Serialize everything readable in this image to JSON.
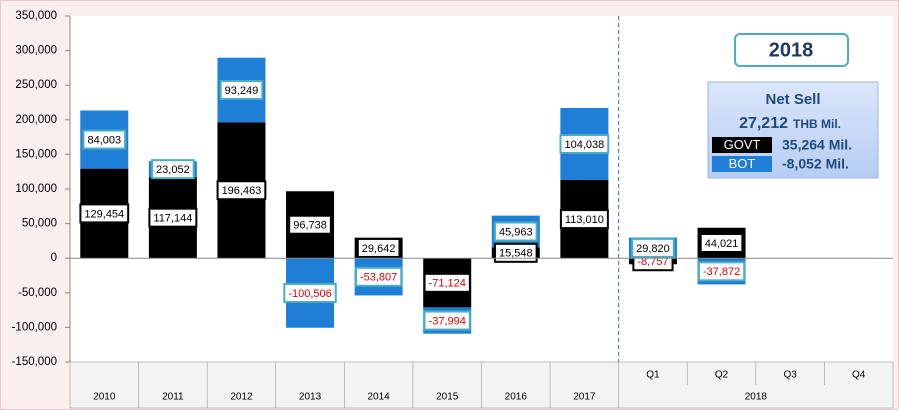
{
  "chart_data": {
    "type": "stacked_bar",
    "categories": [
      "2010",
      "2011",
      "2012",
      "2013",
      "2014",
      "2015",
      "2016",
      "2017",
      "Q1",
      "Q2",
      "Q3",
      "Q4"
    ],
    "group_label": "2018",
    "series": [
      {
        "name": "GOVT",
        "color": "#000000",
        "label_border": "#000000",
        "values": [
          129454,
          117144,
          196463,
          96738,
          29642,
          -71124,
          15548,
          113010,
          -8757,
          44021,
          null,
          null
        ],
        "value_labels": [
          "129,454",
          "117,144",
          "196,463",
          "96,738",
          "29,642",
          "-71,124",
          "15,548",
          "113,010",
          "-8,757",
          "44,021",
          null,
          null
        ]
      },
      {
        "name": "BOT",
        "color": "#1f7fd6",
        "label_border": "#4bacc6",
        "values": [
          84003,
          23052,
          93249,
          -100506,
          -53807,
          -37994,
          45963,
          104038,
          29820,
          -37872,
          null,
          null
        ],
        "value_labels": [
          "84,003",
          "23,052",
          "93,249",
          "-100,506",
          "-53,807",
          "-37,994",
          "45,963",
          "104,038",
          "29,820",
          "-37,872",
          null,
          null
        ]
      }
    ],
    "negative_label_color": "#e00000",
    "ylim": [
      -150000,
      350000
    ],
    "yticks": [
      {
        "value": -150000,
        "label": "-150,000"
      },
      {
        "value": -100000,
        "label": "-100,000"
      },
      {
        "value": -50000,
        "label": "-50,000"
      },
      0,
      {
        "value": 50000,
        "label": "50,000"
      },
      {
        "value": 100000,
        "label": "100,000"
      },
      {
        "value": 150000,
        "label": "150,000"
      },
      {
        "value": 200000,
        "label": "200,000"
      },
      {
        "value": 250000,
        "label": "250,000"
      },
      {
        "value": 300000,
        "label": "300,000"
      },
      {
        "value": 350000,
        "label": "350,000"
      }
    ],
    "info_box": {
      "year": "2018",
      "title": "Net Sell",
      "total": "27,212",
      "total_unit": "THB Mil.",
      "govt_amount": "35,264 Mil.",
      "bot_amount": "-8,052  Mil."
    }
  }
}
